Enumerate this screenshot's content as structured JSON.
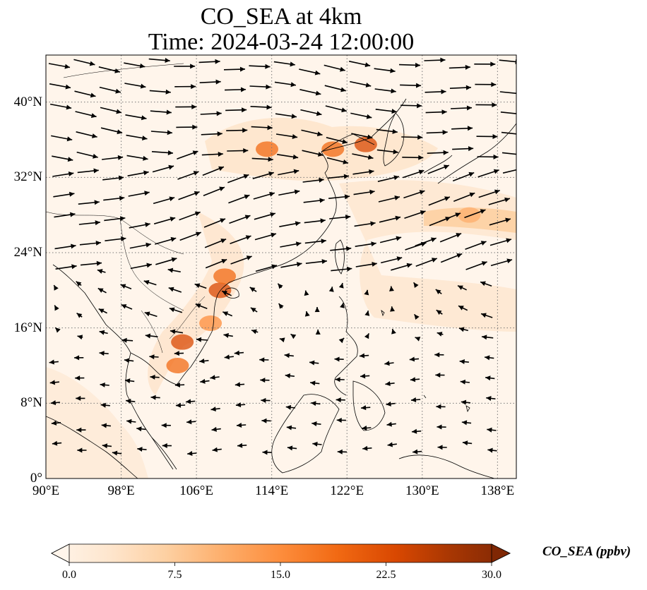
{
  "title_line1": "CO_SEA at 4km",
  "title_line2": "Time: 2024-03-24 12:00:00",
  "map": {
    "lon_range": [
      90,
      140
    ],
    "lat_range": [
      0,
      45
    ],
    "x_ticks": [
      "90°E",
      "98°E",
      "106°E",
      "114°E",
      "122°E",
      "130°E",
      "138°E"
    ],
    "x_tick_values": [
      90,
      98,
      106,
      114,
      122,
      130,
      138
    ],
    "y_ticks": [
      "0°",
      "8°N",
      "16°N",
      "24°N",
      "32°N",
      "40°N"
    ],
    "y_tick_values": [
      0,
      8,
      16,
      24,
      32,
      40
    ],
    "gridlines": true,
    "field": "CO_SEA",
    "wind_vectors": true
  },
  "colorbar": {
    "label": "CO_SEA (ppbv)",
    "ticks": [
      "0.0",
      "7.5",
      "15.0",
      "22.5",
      "30.0"
    ],
    "tick_values": [
      0,
      7.5,
      15,
      22.5,
      30
    ],
    "range": [
      0,
      30
    ],
    "extend": "both",
    "colormap": [
      "#fff5eb",
      "#fee6ce",
      "#fdd0a2",
      "#fdae6b",
      "#fd8d3c",
      "#f16913",
      "#d94801",
      "#a63603",
      "#7f2704"
    ]
  },
  "plumes": [
    {
      "lon": 113.5,
      "lat": 35.0,
      "value": 18
    },
    {
      "lon": 120.5,
      "lat": 35.0,
      "value": 20
    },
    {
      "lon": 124.0,
      "lat": 35.5,
      "value": 22
    },
    {
      "lon": 108.5,
      "lat": 20.0,
      "value": 22
    },
    {
      "lon": 109.0,
      "lat": 21.5,
      "value": 18
    },
    {
      "lon": 104.5,
      "lat": 14.5,
      "value": 24
    },
    {
      "lon": 104.0,
      "lat": 12.0,
      "value": 18
    },
    {
      "lon": 107.5,
      "lat": 16.5,
      "value": 16
    },
    {
      "lon": 135.0,
      "lat": 28.0,
      "value": 10
    }
  ]
}
